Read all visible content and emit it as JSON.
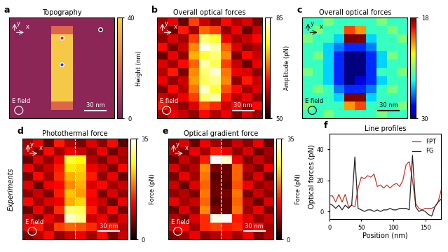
{
  "chart_data": [
    {
      "type": "heatmap",
      "panel": "a",
      "title": "Topography",
      "tick_labels": false,
      "cells": [
        [
          3,
          3,
          3,
          3,
          3,
          3,
          3,
          3,
          3,
          3
        ],
        [
          3,
          3,
          3,
          3,
          20,
          20,
          3,
          3,
          3,
          3
        ],
        [
          3,
          3,
          3,
          3,
          38,
          38,
          3,
          3,
          3,
          3
        ],
        [
          3,
          3,
          3,
          3,
          38,
          38,
          3,
          3,
          3,
          3
        ],
        [
          3,
          3,
          3,
          3,
          38,
          38,
          3,
          3,
          3,
          3
        ],
        [
          3,
          3,
          3,
          3,
          38,
          38,
          3,
          3,
          3,
          3
        ],
        [
          3,
          3,
          3,
          3,
          38,
          38,
          3,
          3,
          3,
          3
        ],
        [
          3,
          3,
          3,
          3,
          38,
          38,
          3,
          3,
          3,
          3
        ],
        [
          3,
          3,
          3,
          3,
          38,
          38,
          3,
          3,
          3,
          3
        ],
        [
          3,
          3,
          3,
          3,
          38,
          38,
          3,
          3,
          3,
          3
        ],
        [
          3,
          3,
          3,
          3,
          20,
          20,
          3,
          3,
          3,
          3
        ],
        [
          3,
          3,
          3,
          3,
          3,
          3,
          3,
          3,
          3,
          3
        ]
      ],
      "cbar_lim": [
        0,
        40
      ],
      "cbar_ticks": [
        0,
        40
      ],
      "cbar_label": "Height (nm)",
      "scale_bar": {
        "length": 30,
        "label": "30 nm"
      },
      "field_label": "E field",
      "axis_labels": [
        "x",
        "y"
      ]
    },
    {
      "type": "heatmap",
      "panel": "b",
      "title": "Overall optical forces",
      "tick_labels": false,
      "cells": [
        [
          58,
          62,
          55,
          66,
          60,
          57,
          63,
          59,
          61,
          56
        ],
        [
          60,
          55,
          64,
          58,
          68,
          66,
          57,
          62,
          55,
          60
        ],
        [
          57,
          61,
          58,
          66,
          80,
          78,
          62,
          58,
          60,
          63
        ],
        [
          63,
          56,
          60,
          70,
          84,
          82,
          68,
          61,
          57,
          59
        ],
        [
          55,
          62,
          57,
          72,
          78,
          80,
          70,
          56,
          63,
          60
        ],
        [
          61,
          58,
          63,
          68,
          82,
          79,
          66,
          60,
          55,
          62
        ],
        [
          59,
          64,
          56,
          70,
          80,
          83,
          69,
          62,
          61,
          57
        ],
        [
          62,
          57,
          60,
          71,
          79,
          81,
          70,
          57,
          64,
          60
        ],
        [
          56,
          63,
          59,
          69,
          83,
          78,
          67,
          63,
          58,
          61
        ],
        [
          60,
          58,
          62,
          66,
          80,
          82,
          64,
          59,
          62,
          57
        ],
        [
          64,
          60,
          57,
          61,
          67,
          65,
          60,
          63,
          57,
          63
        ],
        [
          58,
          62,
          60,
          57,
          63,
          59,
          62,
          56,
          61,
          58
        ]
      ],
      "cbar_lim": [
        50,
        85
      ],
      "cbar_ticks": [
        50,
        85
      ],
      "cbar_label": "Amplitude (pN)",
      "scale_bar": {
        "length": 30,
        "label": "30 nm"
      },
      "field_label": "E field",
      "axis_labels": [
        "x",
        "y"
      ]
    },
    {
      "type": "heatmap",
      "panel": "c",
      "title": "Overall optical forces",
      "tick_labels": false,
      "cells": [
        [
          25,
          25,
          24,
          25,
          25,
          25,
          25,
          24,
          25,
          25
        ],
        [
          25,
          24,
          25,
          25,
          20,
          21,
          25,
          25,
          24,
          25
        ],
        [
          24,
          25,
          25,
          26,
          18,
          18,
          26,
          25,
          25,
          24
        ],
        [
          25,
          25,
          26,
          27,
          28,
          28,
          27,
          25,
          25,
          25
        ],
        [
          25,
          24,
          26,
          28,
          30,
          30,
          28,
          26,
          24,
          25
        ],
        [
          25,
          25,
          26,
          28,
          30,
          30,
          28,
          26,
          25,
          25
        ],
        [
          24,
          25,
          26,
          28,
          30,
          30,
          28,
          25,
          25,
          24
        ],
        [
          25,
          25,
          26,
          28,
          30,
          29,
          28,
          26,
          25,
          25
        ],
        [
          25,
          24,
          25,
          27,
          28,
          28,
          27,
          25,
          24,
          25
        ],
        [
          25,
          25,
          25,
          26,
          18,
          18,
          26,
          25,
          25,
          25
        ],
        [
          24,
          25,
          25,
          25,
          21,
          20,
          25,
          25,
          25,
          24
        ],
        [
          25,
          25,
          24,
          25,
          25,
          25,
          25,
          24,
          25,
          25
        ]
      ],
      "cbar_lim": [
        18,
        30
      ],
      "cbar_ticks": [
        18,
        30
      ],
      "scale_bar": {
        "length": 30,
        "label": "30 nm"
      },
      "field_label": "E field",
      "axis_labels": [
        "x",
        "y"
      ]
    },
    {
      "type": "heatmap",
      "panel": "d",
      "title": "Photothermal force",
      "tick_labels": false,
      "row_label": "Experiments",
      "cells": [
        [
          8,
          12,
          5,
          14,
          9,
          6,
          11,
          7,
          13,
          4
        ],
        [
          10,
          6,
          13,
          8,
          12,
          10,
          7,
          12,
          5,
          9
        ],
        [
          5,
          11,
          7,
          12,
          28,
          26,
          9,
          6,
          11,
          8
        ],
        [
          12,
          7,
          10,
          14,
          25,
          24,
          12,
          10,
          6,
          13
        ],
        [
          6,
          13,
          8,
          15,
          22,
          23,
          14,
          7,
          12,
          5
        ],
        [
          11,
          5,
          12,
          13,
          20,
          22,
          11,
          13,
          8,
          10
        ],
        [
          7,
          10,
          6,
          14,
          23,
          21,
          13,
          6,
          11,
          7
        ],
        [
          13,
          8,
          11,
          12,
          22,
          24,
          12,
          10,
          5,
          12
        ],
        [
          5,
          12,
          7,
          15,
          30,
          29,
          14,
          8,
          13,
          6
        ],
        [
          10,
          6,
          12,
          9,
          33,
          31,
          10,
          12,
          7,
          11
        ],
        [
          12,
          14,
          9,
          16,
          18,
          17,
          15,
          11,
          14,
          9
        ],
        [
          6,
          9,
          13,
          7,
          10,
          12,
          8,
          13,
          6,
          10
        ]
      ],
      "cbar_lim": [
        0,
        35
      ],
      "cbar_ticks": [
        0,
        35
      ],
      "cbar_label": "Force (pN)",
      "scale_bar": {
        "length": 30,
        "label": "30 nm"
      },
      "field_label": "E field",
      "axis_labels": [
        "x",
        "y"
      ]
    },
    {
      "type": "heatmap",
      "panel": "e",
      "title": "Optical gradient force",
      "tick_labels": false,
      "cells": [
        [
          7,
          11,
          5,
          12,
          8,
          6,
          10,
          7,
          12,
          5
        ],
        [
          9,
          6,
          12,
          8,
          14,
          12,
          7,
          11,
          5,
          8
        ],
        [
          5,
          10,
          7,
          14,
          35,
          33,
          12,
          6,
          10,
          7
        ],
        [
          11,
          7,
          9,
          20,
          6,
          5,
          18,
          9,
          6,
          12
        ],
        [
          6,
          12,
          8,
          19,
          4,
          5,
          18,
          7,
          11,
          5
        ],
        [
          10,
          5,
          11,
          18,
          5,
          4,
          17,
          12,
          7,
          9
        ],
        [
          7,
          9,
          6,
          19,
          5,
          6,
          19,
          6,
          10,
          7
        ],
        [
          12,
          8,
          10,
          18,
          4,
          5,
          18,
          9,
          5,
          11
        ],
        [
          5,
          11,
          7,
          20,
          6,
          5,
          19,
          8,
          12,
          6
        ],
        [
          9,
          6,
          11,
          15,
          34,
          35,
          14,
          11,
          7,
          10
        ],
        [
          11,
          13,
          8,
          15,
          16,
          14,
          15,
          10,
          13,
          8
        ],
        [
          6,
          8,
          12,
          7,
          9,
          11,
          8,
          12,
          6,
          9
        ]
      ],
      "cbar_lim": [
        0,
        35
      ],
      "cbar_ticks": [
        0,
        35
      ],
      "cbar_label": "Force (pN)",
      "scale_bar": {
        "length": 30,
        "label": "30 nm"
      },
      "field_label": "E field",
      "axis_labels": [
        "x",
        "y"
      ]
    },
    {
      "type": "line",
      "panel": "f",
      "title": "Line profiles",
      "x": [
        0,
        5,
        10,
        15,
        20,
        25,
        30,
        35,
        40,
        45,
        50,
        55,
        60,
        65,
        70,
        75,
        80,
        85,
        90,
        95,
        100,
        105,
        110,
        115,
        120,
        125,
        130,
        135,
        140,
        145,
        150,
        155,
        160,
        165,
        170,
        175
      ],
      "series": [
        {
          "name": "FPT",
          "color": "#c0392b",
          "values": [
            10,
            10,
            6,
            11,
            6,
            11,
            3,
            4,
            3,
            15,
            22,
            21,
            23,
            22,
            24,
            16,
            17,
            15,
            17,
            15,
            17,
            18,
            16,
            20,
            30,
            32,
            20,
            5,
            2,
            1,
            2,
            2,
            2,
            3,
            6,
            14
          ]
        },
        {
          "name": "FG",
          "color": "#222222",
          "values": [
            5,
            4,
            2,
            4,
            1,
            4,
            2,
            4,
            35,
            2,
            1,
            0,
            1,
            1,
            0,
            1,
            0,
            1,
            1,
            2,
            1,
            1,
            2,
            2,
            2,
            1,
            36,
            3,
            0,
            1,
            0,
            -2,
            -3,
            3,
            6,
            8
          ]
        }
      ],
      "xlabel": "Position (nm)",
      "ylabel": "Optical forces (pN)",
      "xlim": [
        0,
        175
      ],
      "ylim": [
        -5,
        50
      ],
      "xticks": [
        0,
        50,
        100,
        150
      ],
      "yticks": [
        0,
        20,
        40
      ],
      "legend": "upper right"
    }
  ]
}
